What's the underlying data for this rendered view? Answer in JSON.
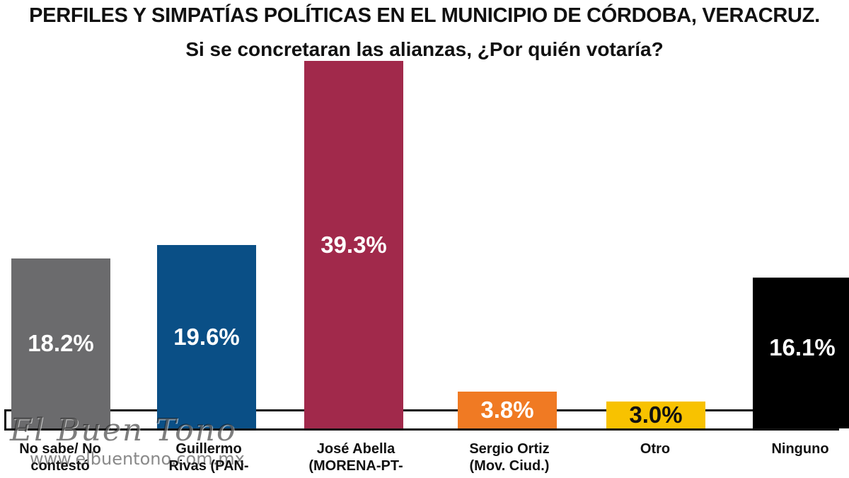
{
  "chart_data": {
    "type": "bar",
    "title": "PERFILES Y SIMPATÍAS POLÍTICAS EN EL MUNICIPIO DE CÓRDOBA, VERACRUZ.",
    "subtitle": "Si se concretaran las alianzas, ¿Por quién votaría?",
    "categories": [
      "No sabe/ No\ncontestó",
      "Guillermo\nRivas (PAN-",
      "José Abella\n(MORENA-PT-",
      "Sergio Ortiz\n(Mov. Ciud.)",
      "Otro",
      "Ninguno"
    ],
    "values": [
      18.2,
      19.6,
      39.3,
      3.8,
      3.0,
      16.1
    ],
    "value_labels": [
      "18.2%",
      "19.6%",
      "39.3%",
      "3.8%",
      "3.0%",
      "16.1%"
    ],
    "colors": [
      "#6b6b6d",
      "#0a4f86",
      "#a1294b",
      "#f07a23",
      "#f8c200",
      "#000000"
    ],
    "ylim": [
      0,
      40
    ],
    "grid": false,
    "legend": "none"
  },
  "watermark": {
    "logo": "El Buen Tono",
    "url": "www.elbuentono.com.mx"
  }
}
